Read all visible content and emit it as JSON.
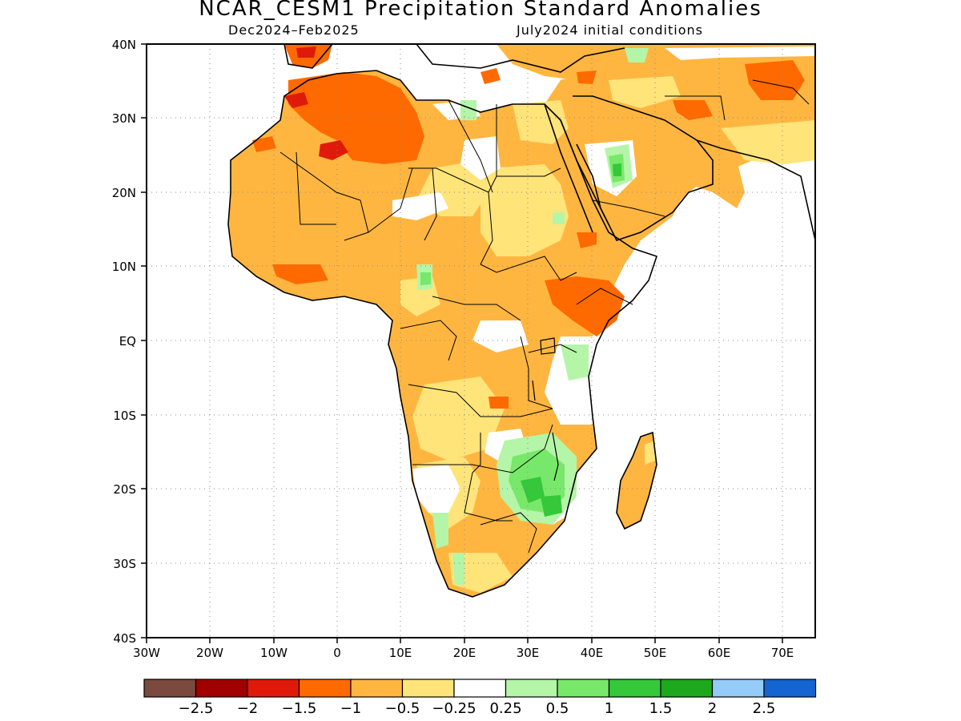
{
  "title": "NCAR_CESM1 Precipitation Standard Anomalies",
  "period": "Dec2024–Feb2025",
  "init": "July2024 initial conditions",
  "lat_labels": [
    "40N",
    "30N",
    "20N",
    "10N",
    "EQ",
    "10S",
    "20S",
    "30S",
    "40S"
  ],
  "lon_labels": [
    "30W",
    "20W",
    "10W",
    "0",
    "10E",
    "20E",
    "30E",
    "40E",
    "50E",
    "60E",
    "70E"
  ],
  "colorbar": {
    "colors": [
      "#7a4a3e",
      "#a00000",
      "#e01a0a",
      "#ff6a00",
      "#ffb640",
      "#ffe47a",
      "#ffffff",
      "#b4f5a8",
      "#78e86a",
      "#34c83a",
      "#1ea81e",
      "#94ccf7",
      "#1464d2"
    ],
    "labels": [
      "−2.5",
      "−2",
      "−1.5",
      "−1",
      "−0.5",
      "−0.25",
      "0.25",
      "0.5",
      "1",
      "1.5",
      "2",
      "2.5"
    ]
  },
  "chart_data": {
    "type": "heatmap",
    "title": "NCAR_CESM1 Precipitation Standard Anomalies",
    "subtitle": "Dec2024–Feb2025, July2024 initial conditions",
    "xlim": [
      -30,
      75
    ],
    "ylim": [
      -40,
      40
    ],
    "x_ticks": [
      "30W",
      "20W",
      "10W",
      "0",
      "10E",
      "20E",
      "30E",
      "40E",
      "50E",
      "60E",
      "70E"
    ],
    "y_ticks": [
      "40N",
      "30N",
      "20N",
      "10N",
      "EQ",
      "10S",
      "20S",
      "30S",
      "40S"
    ],
    "grid": true,
    "legend": "bottom colorbar",
    "scale_bounds": [
      -2.5,
      -2,
      -1.5,
      -1,
      -0.5,
      -0.25,
      0.25,
      0.5,
      1,
      1.5,
      2,
      2.5
    ]
  }
}
